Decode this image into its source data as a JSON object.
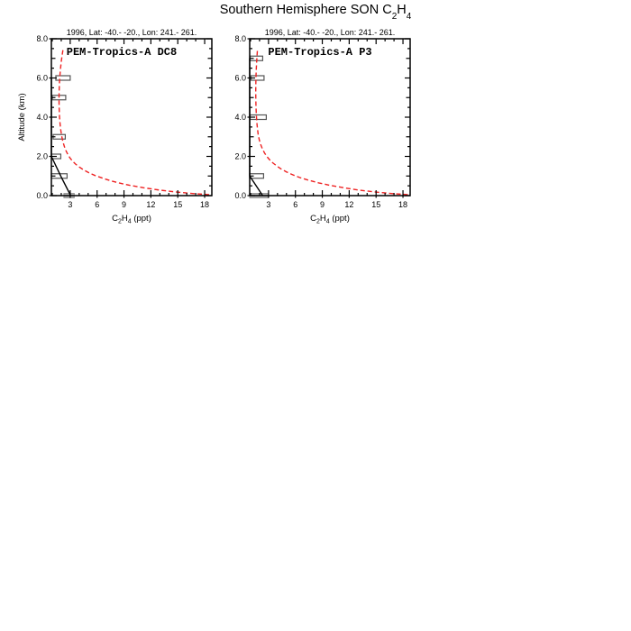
{
  "page_title": {
    "pre": "Southern Hemisphere SON C",
    "sub1": "2",
    "mid": "H",
    "sub2": "4"
  },
  "style": {
    "background": "#ffffff",
    "axis_color": "#000000",
    "model_color": "#ee2222",
    "obs_color": "#000000",
    "box_stroke": "#555555",
    "surface_box_fill": "#b4b4b4",
    "surface_box_stroke": "#999999"
  },
  "chart_data": [
    {
      "type": "line",
      "panel_label": "PEM-Tropics-A DC8",
      "subtitle": "1996, Lat: -40.- -20., Lon: 241.- 261.",
      "ylabel": "Altitude (km)",
      "xlabel_parts": [
        {
          "t": "C",
          "sub": false
        },
        {
          "t": "2",
          "sub": true
        },
        {
          "t": "H",
          "sub": false
        },
        {
          "t": "4",
          "sub": true
        },
        {
          "t": " (ppt)",
          "sub": false
        }
      ],
      "xlim": [
        0.9,
        18.8
      ],
      "ylim": [
        0.0,
        8.0
      ],
      "grid": false,
      "legend": null,
      "x_major_ticks": [
        3,
        6,
        9,
        12,
        15,
        18
      ],
      "x_minor_step": 1,
      "y_major_ticks": [
        0,
        2,
        4,
        6,
        8
      ],
      "y_tick_labels": [
        "0.0",
        "2.0",
        "4.0",
        "6.0",
        "8.0"
      ],
      "y_minor_step": 0.5,
      "series": [
        {
          "name": "model-profile",
          "role": "model",
          "dashed": true,
          "points": [
            [
              18.5,
              0.05
            ],
            [
              16.8,
              0.1
            ],
            [
              14.9,
              0.18
            ],
            [
              13.0,
              0.28
            ],
            [
              11.2,
              0.4
            ],
            [
              9.7,
              0.52
            ],
            [
              8.5,
              0.64
            ],
            [
              7.5,
              0.76
            ],
            [
              6.6,
              0.89
            ],
            [
              5.8,
              1.02
            ],
            [
              5.1,
              1.16
            ],
            [
              4.5,
              1.31
            ],
            [
              4.0,
              1.46
            ],
            [
              3.6,
              1.61
            ],
            [
              3.25,
              1.76
            ],
            [
              2.97,
              1.92
            ],
            [
              2.73,
              2.1
            ],
            [
              2.52,
              2.3
            ],
            [
              2.34,
              2.52
            ],
            [
              2.18,
              2.77
            ],
            [
              2.05,
              3.05
            ],
            [
              1.95,
              3.35
            ],
            [
              1.87,
              3.68
            ],
            [
              1.81,
              4.02
            ],
            [
              1.77,
              4.38
            ],
            [
              1.75,
              4.75
            ],
            [
              1.75,
              5.1
            ],
            [
              1.77,
              5.45
            ],
            [
              1.81,
              5.8
            ],
            [
              1.86,
              6.15
            ],
            [
              1.93,
              6.5
            ],
            [
              2.01,
              6.85
            ],
            [
              2.1,
              7.15
            ],
            [
              2.2,
              7.45
            ]
          ]
        },
        {
          "name": "observed-median",
          "role": "obs",
          "dashed": false,
          "points": [
            [
              3.05,
              0.0
            ],
            [
              1.95,
              1.0
            ],
            [
              0.9,
              2.0
            ],
            [
              0.9,
              6.0
            ]
          ]
        }
      ],
      "obs_boxes": [
        {
          "alt": 1.0,
          "lo": 0.9,
          "hi": 2.65
        },
        {
          "alt": 2.0,
          "lo": 0.9,
          "hi": 1.95
        },
        {
          "alt": 3.0,
          "lo": 1.1,
          "hi": 2.45
        },
        {
          "alt": 5.0,
          "lo": 1.0,
          "hi": 2.5
        },
        {
          "alt": 6.0,
          "lo": 1.4,
          "hi": 3.0
        }
      ],
      "surface_box": {
        "alt": 0.0,
        "lo": 2.3,
        "hi": 3.45
      }
    },
    {
      "type": "line",
      "panel_label": "PEM-Tropics-A P3",
      "subtitle": "1996, Lat: -40.- -20., Lon: 241.- 261.",
      "ylabel": "",
      "xlabel_parts": [
        {
          "t": "C",
          "sub": false
        },
        {
          "t": "2",
          "sub": true
        },
        {
          "t": "H",
          "sub": false
        },
        {
          "t": "4",
          "sub": true
        },
        {
          "t": " (ppt)",
          "sub": false
        }
      ],
      "xlim": [
        0.9,
        18.8
      ],
      "ylim": [
        0.0,
        8.0
      ],
      "grid": false,
      "legend": null,
      "x_major_ticks": [
        3,
        6,
        9,
        12,
        15,
        18
      ],
      "x_minor_step": 1,
      "y_major_ticks": [
        0,
        2,
        4,
        6,
        8
      ],
      "y_tick_labels": [
        "0.0",
        "2.0",
        "4.0",
        "6.0",
        "8.0"
      ],
      "y_minor_step": 0.5,
      "series": [
        {
          "name": "model-profile",
          "role": "model",
          "dashed": true,
          "points": [
            [
              18.55,
              0.05
            ],
            [
              16.9,
              0.1
            ],
            [
              15.0,
              0.18
            ],
            [
              13.1,
              0.28
            ],
            [
              11.4,
              0.4
            ],
            [
              9.9,
              0.52
            ],
            [
              8.6,
              0.65
            ],
            [
              7.5,
              0.78
            ],
            [
              6.5,
              0.92
            ],
            [
              5.7,
              1.06
            ],
            [
              5.0,
              1.21
            ],
            [
              4.4,
              1.36
            ],
            [
              3.9,
              1.52
            ],
            [
              3.45,
              1.68
            ],
            [
              3.1,
              1.84
            ],
            [
              2.8,
              2.0
            ],
            [
              2.55,
              2.18
            ],
            [
              2.32,
              2.38
            ],
            [
              2.13,
              2.6
            ],
            [
              1.97,
              2.85
            ],
            [
              1.85,
              3.12
            ],
            [
              1.76,
              3.42
            ],
            [
              1.69,
              3.75
            ],
            [
              1.64,
              4.1
            ],
            [
              1.6,
              4.5
            ],
            [
              1.58,
              4.9
            ],
            [
              1.57,
              5.3
            ],
            [
              1.58,
              5.7
            ],
            [
              1.6,
              6.1
            ],
            [
              1.63,
              6.45
            ],
            [
              1.67,
              6.8
            ],
            [
              1.71,
              7.1
            ],
            [
              1.76,
              7.45
            ]
          ]
        },
        {
          "name": "observed-median",
          "role": "obs",
          "dashed": false,
          "points": [
            [
              2.35,
              0.0
            ],
            [
              0.9,
              1.0
            ],
            [
              0.9,
              7.0
            ]
          ]
        }
      ],
      "obs_boxes": [
        {
          "alt": 1.0,
          "lo": 0.9,
          "hi": 2.45
        },
        {
          "alt": 4.0,
          "lo": 0.95,
          "hi": 2.75
        },
        {
          "alt": 6.0,
          "lo": 1.05,
          "hi": 2.5
        },
        {
          "alt": 7.0,
          "lo": 0.95,
          "hi": 2.35
        }
      ],
      "surface_box": {
        "alt": 0.0,
        "lo": 0.9,
        "hi": 3.0
      }
    }
  ]
}
